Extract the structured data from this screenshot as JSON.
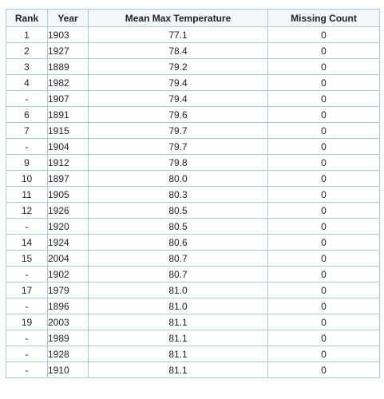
{
  "table": {
    "headers": {
      "rank": "Rank",
      "year": "Year",
      "mean": "Mean Max Temperature",
      "missing": "Missing Count"
    },
    "rows": [
      {
        "rank": "1",
        "year": "1903",
        "mean": "77.1",
        "missing": "0"
      },
      {
        "rank": "2",
        "year": "1927",
        "mean": "78.4",
        "missing": "0"
      },
      {
        "rank": "3",
        "year": "1889",
        "mean": "79.2",
        "missing": "0"
      },
      {
        "rank": "4",
        "year": "1982",
        "mean": "79.4",
        "missing": "0"
      },
      {
        "rank": "-",
        "year": "1907",
        "mean": "79.4",
        "missing": "0"
      },
      {
        "rank": "6",
        "year": "1891",
        "mean": "79.6",
        "missing": "0"
      },
      {
        "rank": "7",
        "year": "1915",
        "mean": "79.7",
        "missing": "0"
      },
      {
        "rank": "-",
        "year": "1904",
        "mean": "79.7",
        "missing": "0"
      },
      {
        "rank": "9",
        "year": "1912",
        "mean": "79.8",
        "missing": "0"
      },
      {
        "rank": "10",
        "year": "1897",
        "mean": "80.0",
        "missing": "0"
      },
      {
        "rank": "11",
        "year": "1905",
        "mean": "80.3",
        "missing": "0"
      },
      {
        "rank": "12",
        "year": "1926",
        "mean": "80.5",
        "missing": "0"
      },
      {
        "rank": "-",
        "year": "1920",
        "mean": "80.5",
        "missing": "0"
      },
      {
        "rank": "14",
        "year": "1924",
        "mean": "80.6",
        "missing": "0"
      },
      {
        "rank": "15",
        "year": "2004",
        "mean": "80.7",
        "missing": "0"
      },
      {
        "rank": "-",
        "year": "1902",
        "mean": "80.7",
        "missing": "0"
      },
      {
        "rank": "17",
        "year": "1979",
        "mean": "81.0",
        "missing": "0"
      },
      {
        "rank": "-",
        "year": "1896",
        "mean": "81.0",
        "missing": "0"
      },
      {
        "rank": "19",
        "year": "2003",
        "mean": "81.1",
        "missing": "0"
      },
      {
        "rank": "-",
        "year": "1989",
        "mean": "81.1",
        "missing": "0"
      },
      {
        "rank": "-",
        "year": "1928",
        "mean": "81.1",
        "missing": "0"
      },
      {
        "rank": "-",
        "year": "1910",
        "mean": "81.1",
        "missing": "0"
      }
    ]
  },
  "colors": {
    "border": "#a8c8e8",
    "text": "#222222",
    "header_background": "#f3f6fa"
  }
}
